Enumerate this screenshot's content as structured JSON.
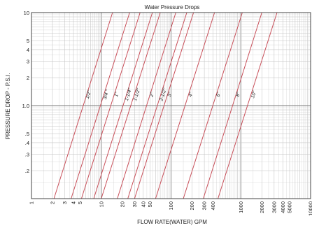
{
  "chart_data": {
    "type": "line",
    "title": "Water Pressure Drops",
    "xlabel": "FLOW RATE(WATER) GPM",
    "ylabel": "PRESSURE DROP - P.S.I.",
    "x_scale": "log",
    "y_scale": "log",
    "xlim": [
      1,
      10000
    ],
    "ylim": [
      0.1,
      10
    ],
    "grid": true,
    "x_ticks": [
      {
        "value": 1,
        "label": "1"
      },
      {
        "value": 2,
        "label": "2"
      },
      {
        "value": 3,
        "label": "3"
      },
      {
        "value": 4,
        "label": "4"
      },
      {
        "value": 5,
        "label": "5"
      },
      {
        "value": 10,
        "label": "10"
      },
      {
        "value": 20,
        "label": "20"
      },
      {
        "value": 30,
        "label": "30"
      },
      {
        "value": 40,
        "label": "40"
      },
      {
        "value": 50,
        "label": "50"
      },
      {
        "value": 100,
        "label": "100"
      },
      {
        "value": 200,
        "label": "200"
      },
      {
        "value": 300,
        "label": "300"
      },
      {
        "value": 400,
        "label": "400"
      },
      {
        "value": 1000,
        "label": "1000"
      },
      {
        "value": 2000,
        "label": "2000"
      },
      {
        "value": 3000,
        "label": "3000"
      },
      {
        "value": 4000,
        "label": "4000"
      },
      {
        "value": 5000,
        "label": "5000"
      },
      {
        "value": 10000,
        "label": "10000"
      }
    ],
    "y_ticks": [
      {
        "value": 10,
        "label": "10"
      },
      {
        "value": 5,
        "label": "5"
      },
      {
        "value": 4,
        "label": "4"
      },
      {
        "value": 3,
        "label": "3"
      },
      {
        "value": 2,
        "label": "2"
      },
      {
        "value": 1,
        "label": "1.0"
      },
      {
        "value": 0.5,
        "label": ".5"
      },
      {
        "value": 0.4,
        "label": ".4"
      },
      {
        "value": 0.3,
        "label": ".3"
      },
      {
        "value": 0.2,
        "label": ".2"
      }
    ],
    "series": [
      {
        "name": "1/2\"",
        "x": [
          2.1,
          14.5
        ],
        "y": [
          0.1,
          10
        ],
        "label_point": [
          7.5,
          1.3
        ]
      },
      {
        "name": "3/4 \"",
        "x": [
          3.7,
          25.5
        ],
        "y": [
          0.1,
          10
        ],
        "label_point": [
          13.5,
          1.3
        ]
      },
      {
        "name": "1\"",
        "x": [
          5.2,
          36
        ],
        "y": [
          0.1,
          10
        ],
        "label_point": [
          19,
          1.3
        ]
      },
      {
        "name": "1-1/4\"",
        "x": [
          7.8,
          54
        ],
        "y": [
          0.1,
          10
        ],
        "label_point": [
          28,
          1.3
        ]
      },
      {
        "name": "1-1/2\"",
        "x": [
          10,
          70
        ],
        "y": [
          0.1,
          10
        ],
        "label_point": [
          37,
          1.3
        ]
      },
      {
        "name": "2\"",
        "x": [
          17,
          117
        ],
        "y": [
          0.1,
          10
        ],
        "label_point": [
          61,
          1.3
        ]
      },
      {
        "name": "2-1/2\"",
        "x": [
          24,
          168
        ],
        "y": [
          0.1,
          10
        ],
        "label_point": [
          88,
          1.3
        ]
      },
      {
        "name": "3\"",
        "x": [
          30,
          210
        ],
        "y": [
          0.1,
          10
        ],
        "label_point": [
          110,
          1.3
        ]
      },
      {
        "name": "4\"",
        "x": [
          60,
          420
        ],
        "y": [
          0.1,
          10
        ],
        "label_point": [
          220,
          1.3
        ]
      },
      {
        "name": "6\"",
        "x": [
          150,
          1050
        ],
        "y": [
          0.1,
          10
        ],
        "label_point": [
          550,
          1.3
        ]
      },
      {
        "name": "8\"",
        "x": [
          290,
          2000
        ],
        "y": [
          0.1,
          10
        ],
        "label_point": [
          1050,
          1.3
        ]
      },
      {
        "name": "10\"",
        "x": [
          470,
          3300
        ],
        "y": [
          0.1,
          10
        ],
        "label_point": [
          1750,
          1.3
        ]
      }
    ]
  },
  "colors": {
    "line": "#c8505a",
    "grid_minor": "#c4c4c4",
    "grid_major": "#7a7a7a",
    "frame": "#444444",
    "text": "#1a1a1a"
  }
}
